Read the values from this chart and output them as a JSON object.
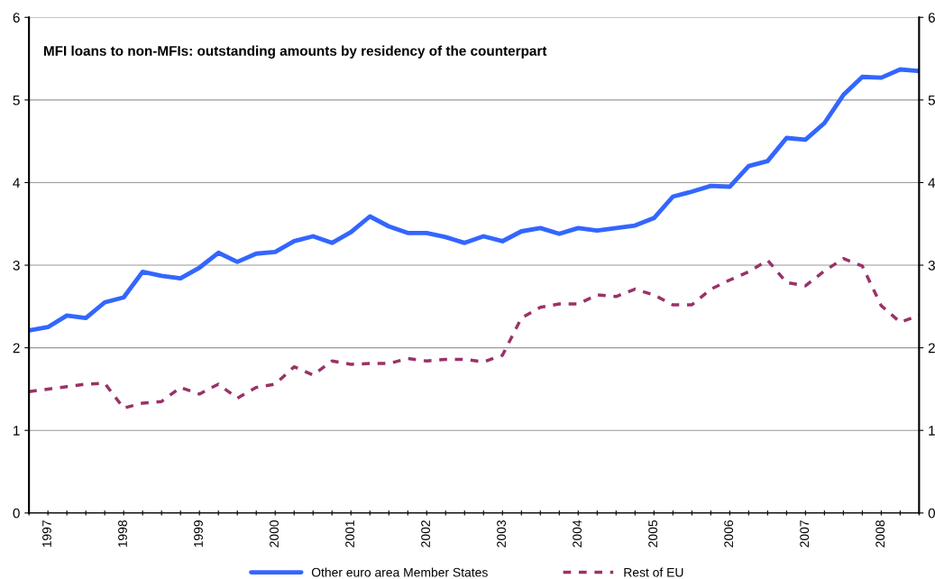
{
  "chart_data": {
    "type": "line",
    "title": "MFI loans to non-MFIs: outstanding amounts by residency of the counterpart",
    "categories": [
      null,
      "1997",
      null,
      null,
      null,
      "1998",
      null,
      null,
      null,
      "1999",
      null,
      null,
      null,
      "2000",
      null,
      null,
      null,
      "2001",
      null,
      null,
      null,
      "2002",
      null,
      null,
      null,
      "2003",
      null,
      null,
      null,
      "2004",
      null,
      null,
      null,
      "2005",
      null,
      null,
      null,
      "2006",
      null,
      null,
      null,
      "2007",
      null,
      null,
      null,
      "2008",
      null,
      null
    ],
    "series": [
      {
        "name": "Other euro area Member States",
        "color": "#3366ff",
        "line_style": "solid",
        "values": [
          2.21,
          2.25,
          2.39,
          2.36,
          2.55,
          2.61,
          2.92,
          2.87,
          2.84,
          2.97,
          3.15,
          3.04,
          3.14,
          3.16,
          3.29,
          3.35,
          3.27,
          3.4,
          3.59,
          3.47,
          3.39,
          3.39,
          3.34,
          3.27,
          3.35,
          3.29,
          3.41,
          3.45,
          3.38,
          3.45,
          3.42,
          3.45,
          3.48,
          3.57,
          3.83,
          3.89,
          3.96,
          3.95,
          4.2,
          4.26,
          4.54,
          4.52,
          4.72,
          5.06,
          5.28,
          5.27,
          5.37,
          5.35
        ]
      },
      {
        "name": "Rest of EU",
        "color": "#993366",
        "line_style": "dashed",
        "values": [
          1.47,
          1.5,
          1.53,
          1.56,
          1.57,
          1.27,
          1.33,
          1.35,
          1.52,
          1.44,
          1.56,
          1.39,
          1.52,
          1.56,
          1.77,
          1.67,
          1.84,
          1.8,
          1.81,
          1.81,
          1.87,
          1.84,
          1.86,
          1.86,
          1.83,
          1.91,
          2.36,
          2.49,
          2.53,
          2.53,
          2.64,
          2.62,
          2.71,
          2.64,
          2.52,
          2.52,
          2.71,
          2.82,
          2.92,
          3.06,
          2.79,
          2.75,
          2.93,
          3.08,
          2.99,
          2.51,
          2.31,
          2.39
        ]
      }
    ],
    "ylim": [
      0,
      6
    ],
    "yticks": [
      0,
      1,
      2,
      3,
      4,
      5,
      6
    ],
    "y2lim": [
      0,
      6
    ],
    "y2ticks": [
      0,
      1,
      2,
      3,
      4,
      5,
      6
    ],
    "grid": "y",
    "legend": "bottom",
    "marker": "none"
  }
}
